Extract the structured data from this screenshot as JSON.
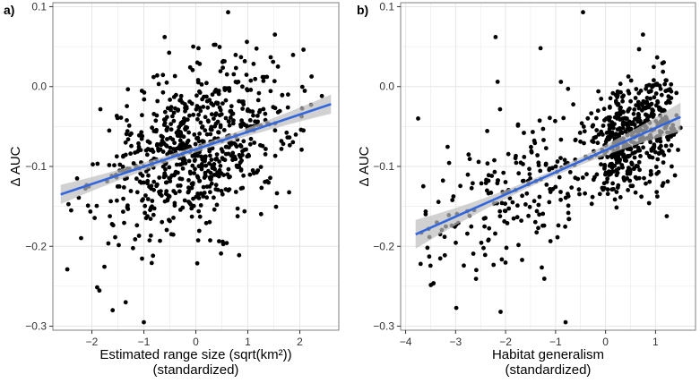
{
  "colors": {
    "points": "#000000",
    "fit_line": "#3366dd",
    "ci_band": "#bdbdbd",
    "grid": "#e6e6e6",
    "panel_border": "#7f7f7f"
  },
  "chart_data": [
    {
      "type": "scatter",
      "panel_label": "a)",
      "xlabel": [
        "Estimated range size (sqrt(km²))",
        "(standardized)"
      ],
      "ylabel": "Δ AUC",
      "xlim": [
        -2.75,
        2.75
      ],
      "ylim": [
        -0.305,
        0.105
      ],
      "x_ticks": [
        -2,
        -1,
        0,
        1,
        2
      ],
      "x_tick_labels": [
        "−2",
        "−1",
        "0",
        "1",
        "2"
      ],
      "y_ticks": [
        -0.3,
        -0.2,
        -0.1,
        0.0,
        0.1
      ],
      "y_tick_labels": [
        "−0.3",
        "−0.2",
        "−0.1",
        "0.0",
        "0.1"
      ],
      "grid": true,
      "legend": "none",
      "fit": {
        "method": "linear",
        "x": [
          -2.6,
          2.6
        ],
        "y": [
          -0.135,
          -0.022
        ],
        "ci_halfwidth_ends": 0.012,
        "ci_halfwidth_center": 0.004
      },
      "points": {
        "description_of_generation": "",
        "n": 750,
        "x_range": [
          -2.6,
          2.6
        ],
        "slope": 0.0215,
        "intercept": -0.078,
        "noise_sd": 0.048,
        "highlights": [
          [
            -0.6,
            0.062
          ],
          [
            0.62,
            0.093
          ],
          [
            1.52,
            0.065
          ],
          [
            -0.05,
            0.05
          ],
          [
            0.05,
            0.048
          ],
          [
            -1.0,
            -0.295
          ],
          [
            -1.6,
            -0.28
          ],
          [
            -1.35,
            -0.27
          ]
        ]
      }
    },
    {
      "type": "scatter",
      "panel_label": "b)",
      "xlabel": [
        "Habitat generalism",
        "(standardized)"
      ],
      "ylabel": "Δ AUC",
      "xlim": [
        -4.1,
        1.8
      ],
      "ylim": [
        -0.305,
        0.105
      ],
      "x_ticks": [
        -4,
        -3,
        -2,
        -1,
        0,
        1
      ],
      "x_tick_labels": [
        "−4",
        "−3",
        "−2",
        "−1",
        "0",
        "1"
      ],
      "y_ticks": [
        -0.3,
        -0.2,
        -0.1,
        0.0,
        0.1
      ],
      "y_tick_labels": [
        "−0.3",
        "−0.2",
        "−0.1",
        "0.0",
        "0.1"
      ],
      "grid": true,
      "legend": "none",
      "fit": {
        "method": "linear",
        "x": [
          -3.8,
          1.5
        ],
        "y": [
          -0.185,
          -0.038
        ],
        "ci_halfwidth_ends": 0.018,
        "ci_halfwidth_center": 0.004
      },
      "points": {
        "description_of_generation": "",
        "n": 750,
        "x_range": [
          -3.8,
          1.5
        ],
        "slope": 0.0277,
        "intercept": -0.08,
        "noise_sd": 0.045,
        "highlights": [
          [
            -0.45,
            0.093
          ],
          [
            -2.2,
            0.062
          ],
          [
            -1.3,
            0.048
          ],
          [
            0.75,
            0.065
          ],
          [
            -3.75,
            -0.04
          ],
          [
            -3.7,
            -0.222
          ],
          [
            -0.8,
            -0.295
          ],
          [
            -2.1,
            -0.282
          ]
        ]
      }
    }
  ]
}
